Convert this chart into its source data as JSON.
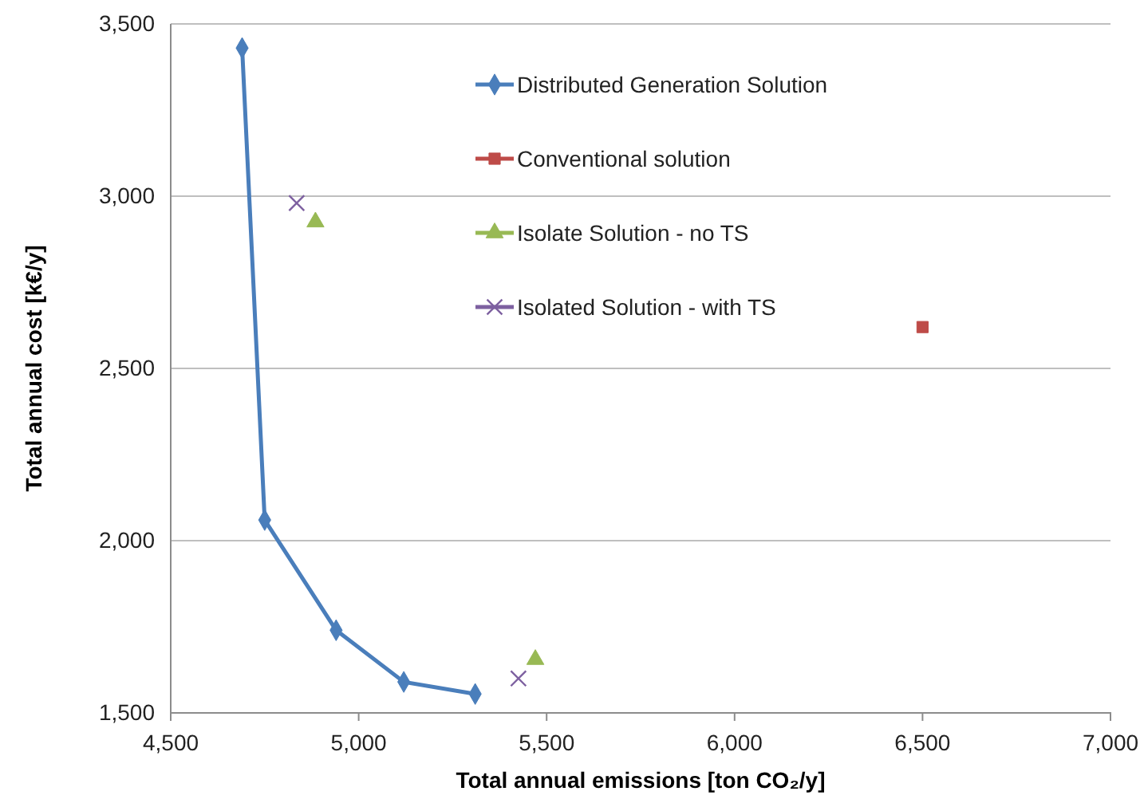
{
  "chart_data": {
    "type": "line",
    "xlabel": "Total annual emissions [ton CO₂/y]",
    "ylabel": "Total annual cost [k€/y]",
    "xlim": [
      4500,
      7000
    ],
    "xticks": [
      {
        "value": 4500,
        "label": "4,500"
      },
      {
        "value": 5000,
        "label": "5,000"
      },
      {
        "value": 5500,
        "label": "5,500"
      },
      {
        "value": 6000,
        "label": "6,000"
      },
      {
        "value": 6500,
        "label": "6,500"
      },
      {
        "value": 7000,
        "label": "7,000"
      }
    ],
    "ylim": [
      1500,
      3500
    ],
    "yticks": [
      {
        "value": 1500,
        "label": "1,500"
      },
      {
        "value": 2000,
        "label": "2,000"
      },
      {
        "value": 2500,
        "label": "2,500"
      },
      {
        "value": 3000,
        "label": "3,000"
      },
      {
        "value": 3500,
        "label": "3,500"
      }
    ],
    "grid": "y",
    "legend": "top right",
    "series": [
      {
        "name": "Distributed Generation Solution",
        "type": "line",
        "marker": "diamond",
        "color": "#4a7ebb",
        "x": [
          4690,
          4750,
          4940,
          5120,
          5310
        ],
        "values": [
          3430,
          2060,
          1740,
          1590,
          1555
        ]
      },
      {
        "name": "Conventional solution",
        "type": "scatter",
        "marker": "square",
        "color": "#be4b48",
        "x": [
          6500
        ],
        "values": [
          2620
        ]
      },
      {
        "name": "Isolate Solution - no TS",
        "type": "scatter",
        "marker": "triangle",
        "color": "#98b954",
        "x": [
          4885,
          5470
        ],
        "values": [
          2925,
          1655
        ]
      },
      {
        "name": "Isolated Solution - with TS",
        "type": "scatter",
        "marker": "cross",
        "color": "#7d60a0",
        "x": [
          4835,
          5425
        ],
        "values": [
          2980,
          1600
        ]
      }
    ]
  }
}
